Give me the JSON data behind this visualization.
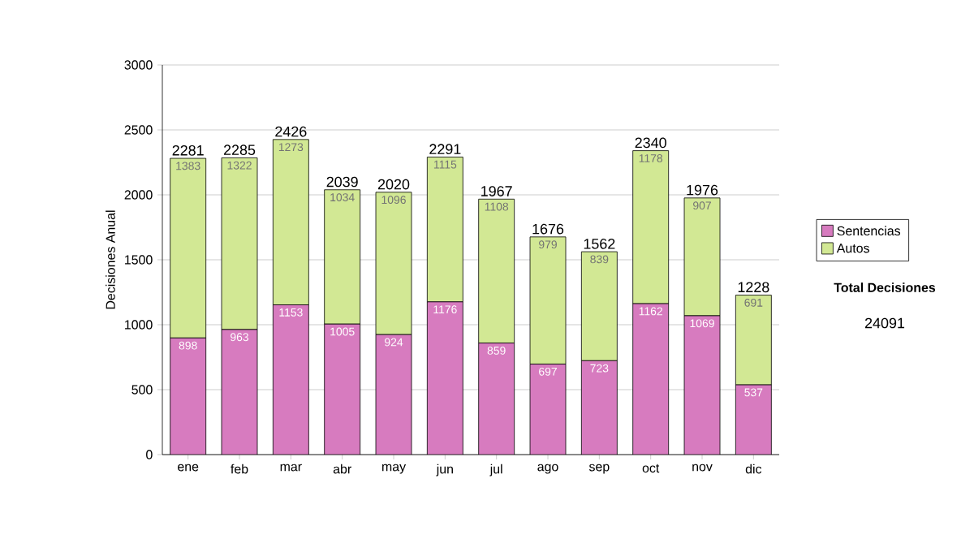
{
  "chart_data": {
    "type": "bar",
    "stacked": true,
    "ylabel": "Decisiones Anual",
    "categories": [
      "ene",
      "feb",
      "mar",
      "abr",
      "may",
      "jun",
      "jul",
      "ago",
      "sep",
      "oct",
      "nov",
      "dic"
    ],
    "series": [
      {
        "name": "Sentencias",
        "color": "#d77bbf",
        "values": [
          898,
          963,
          1153,
          1005,
          924,
          1176,
          859,
          697,
          723,
          1162,
          1069,
          537
        ],
        "value_labels": [
          "898",
          "963",
          "1153",
          "1005",
          "924",
          "1176",
          "859",
          "697",
          "723",
          "1162",
          "1069",
          "537"
        ]
      },
      {
        "name": "Autos",
        "color": "#d2e894",
        "values": [
          1383,
          1322,
          1273,
          1034,
          1096,
          1115,
          1108,
          979,
          839,
          1178,
          907,
          691
        ],
        "value_labels": [
          "1383",
          "1322",
          "1273",
          "1034",
          "1096",
          "1115",
          "1108",
          "979",
          "839",
          "1178",
          "907",
          "691"
        ]
      }
    ],
    "totals": [
      "2281",
      "2285",
      "2426",
      "2039",
      "2020",
      "2291",
      "1967",
      "1676",
      "1562",
      "2340",
      "1976",
      "1228"
    ],
    "ylim": [
      0,
      3000
    ],
    "yticks": [
      0,
      500,
      1000,
      1500,
      2000,
      2500,
      3000
    ],
    "grid": "y",
    "legend": "right",
    "annotations": [
      "Total Decisiones",
      "24091"
    ]
  }
}
